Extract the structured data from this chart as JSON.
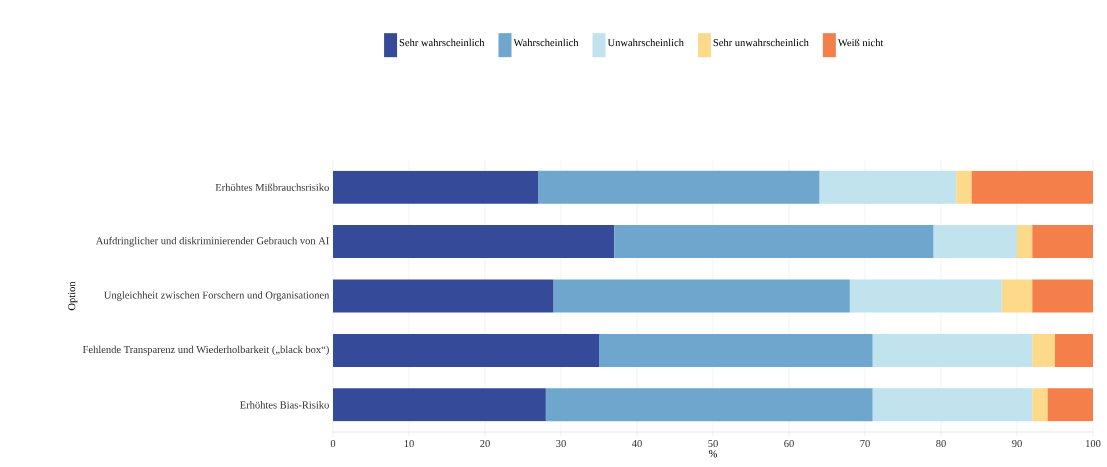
{
  "chart_data": {
    "type": "bar",
    "orientation": "horizontal",
    "stacked": true,
    "xlabel": "%",
    "ylabel": "Option",
    "categories": [
      "Erhöhtes Mißbrauchsrisiko",
      "Aufdringlicher und diskriminierender Gebrauch von AI",
      "Ungleichheit zwischen Forschern und Organisationen",
      "Fehlende Transparenz und Wiederholbarkeit („black box“)",
      "Erhöhtes Bias-Risiko"
    ],
    "series": [
      {
        "name": "Sehr wahrscheinlich",
        "color": "#364a9a",
        "values": [
          27,
          37,
          29,
          35,
          28
        ]
      },
      {
        "name": "Wahrscheinlich",
        "color": "#6fa6cd",
        "values": [
          37,
          42,
          39,
          36,
          43
        ]
      },
      {
        "name": "Unwahrscheinlich",
        "color": "#c1e3ee",
        "values": [
          18,
          11,
          20,
          21,
          21
        ]
      },
      {
        "name": "Sehr unwahrscheinlich",
        "color": "#fdd98a",
        "values": [
          2,
          2,
          4,
          3,
          2
        ]
      },
      {
        "name": "Weiß nicht",
        "color": "#f57f4b",
        "values": [
          16,
          8,
          8,
          5,
          6
        ]
      }
    ],
    "xlim": [
      0,
      100
    ],
    "xticks": [
      0,
      10,
      20,
      30,
      40,
      50,
      60,
      70,
      80,
      90,
      100
    ],
    "grid": "x",
    "legend": "top"
  }
}
